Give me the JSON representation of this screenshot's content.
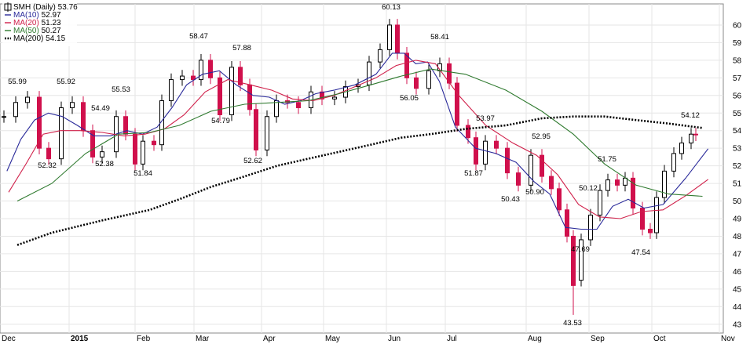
{
  "chart_data": {
    "type": "candlestick",
    "title": "SMH (Daily) 53.76",
    "symbol": "SMH",
    "period": "Daily",
    "last_price": "53.76",
    "yaxis": {
      "side": "right",
      "ylim": [
        42.5,
        61.2
      ],
      "ticks": [
        43,
        44,
        45,
        46,
        47,
        48,
        49,
        50,
        51,
        52,
        53,
        54,
        55,
        56,
        57,
        58,
        59,
        60
      ]
    },
    "xaxis": {
      "labels": [
        "Dec",
        "2015",
        "Feb",
        "Mar",
        "Apr",
        "May",
        "Jun",
        "Jul",
        "Aug",
        "Sep",
        "Oct",
        "Nov"
      ],
      "bold_label": "2015"
    },
    "grid": true,
    "legend_position": "top-left",
    "legend": [
      {
        "name": "SMH (Daily) 53.76",
        "color": "#000000",
        "style": "icon"
      },
      {
        "name": "MA(10)",
        "value": "52.97",
        "color": "#2a2a9a",
        "style": "solid"
      },
      {
        "name": "MA(20)",
        "value": "51.23",
        "color": "#d0204a",
        "style": "solid"
      },
      {
        "name": "MA(50)",
        "value": "50.27",
        "color": "#2f7a2f",
        "style": "solid"
      },
      {
        "name": "MA(200)",
        "value": "54.15",
        "color": "#000000",
        "style": "dotted"
      }
    ],
    "annotations": [
      "55.99",
      "55.92",
      "54.49",
      "55.53",
      "52.32",
      "52.38",
      "51.84",
      "58.47",
      "57.88",
      "54.79",
      "52.62",
      "60.13",
      "58.41",
      "56.05",
      "53.97",
      "51.87",
      "52.95",
      "50.43",
      "50.90",
      "50.12",
      "51.75",
      "47.69",
      "43.53",
      "47.54",
      "54.12"
    ],
    "series": [
      {
        "name": "MA(10)",
        "color": "#2a2a9a",
        "points": [
          [
            "Dec",
            51.7
          ],
          [
            "Dec",
            53.5
          ],
          [
            "Dec",
            54.6
          ],
          [
            "Dec",
            55.0
          ],
          [
            "Dec",
            54.8
          ],
          [
            "2015",
            54.3
          ],
          [
            "2015",
            53.7
          ],
          [
            "2015",
            53.7
          ],
          [
            "2015",
            54.0
          ],
          [
            "Feb",
            53.8
          ],
          [
            "Feb",
            54.2
          ],
          [
            "Feb",
            55.3
          ],
          [
            "Feb",
            56.6
          ],
          [
            "Mar",
            57.2
          ],
          [
            "Mar",
            57.4
          ],
          [
            "Mar",
            56.6
          ],
          [
            "Mar",
            56.0
          ],
          [
            "Apr",
            55.9
          ],
          [
            "Apr",
            55.5
          ],
          [
            "Apr",
            55.7
          ],
          [
            "Apr",
            56.1
          ],
          [
            "May",
            56.3
          ],
          [
            "May",
            56.6
          ],
          [
            "May",
            57.2
          ],
          [
            "Jun",
            58.4
          ],
          [
            "Jun",
            58.4
          ],
          [
            "Jun",
            57.8
          ],
          [
            "Jun",
            57.9
          ],
          [
            "Jun",
            56.8
          ],
          [
            "Jul",
            54.2
          ],
          [
            "Jul",
            53.0
          ],
          [
            "Jul",
            52.7
          ],
          [
            "Jul",
            52.2
          ],
          [
            "Aug",
            51.1
          ],
          [
            "Aug",
            50.4
          ],
          [
            "Aug",
            48.5
          ],
          [
            "Aug",
            48.4
          ],
          [
            "Sep",
            48.4
          ],
          [
            "Sep",
            49.7
          ],
          [
            "Sep",
            50.1
          ],
          [
            "Sep",
            49.6
          ],
          [
            "Oct",
            49.8
          ],
          [
            "Oct",
            51.3
          ],
          [
            "Oct",
            52.97
          ]
        ]
      },
      {
        "name": "MA(20)",
        "color": "#d0204a",
        "points": [
          [
            "Dec",
            50.5
          ],
          [
            "Dec",
            52.1
          ],
          [
            "Dec",
            53.8
          ],
          [
            "Dec",
            54.0
          ],
          [
            "2015",
            54.0
          ],
          [
            "2015",
            53.9
          ],
          [
            "2015",
            53.7
          ],
          [
            "Feb",
            53.8
          ],
          [
            "Feb",
            54.1
          ],
          [
            "Feb",
            54.9
          ],
          [
            "Mar",
            56.2
          ],
          [
            "Mar",
            56.9
          ],
          [
            "Mar",
            56.6
          ],
          [
            "Apr",
            56.3
          ],
          [
            "Apr",
            55.8
          ],
          [
            "Apr",
            55.7
          ],
          [
            "May",
            56.0
          ],
          [
            "May",
            56.5
          ],
          [
            "May",
            57.0
          ],
          [
            "Jun",
            57.7
          ],
          [
            "Jun",
            58.0
          ],
          [
            "Jun",
            57.8
          ],
          [
            "Jul",
            56.0
          ],
          [
            "Jul",
            54.3
          ],
          [
            "Jul",
            53.3
          ],
          [
            "Aug",
            52.6
          ],
          [
            "Aug",
            51.5
          ],
          [
            "Aug",
            49.8
          ],
          [
            "Sep",
            49.1
          ],
          [
            "Sep",
            49.0
          ],
          [
            "Sep",
            49.4
          ],
          [
            "Oct",
            49.5
          ],
          [
            "Oct",
            50.3
          ],
          [
            "Oct",
            51.23
          ]
        ]
      },
      {
        "name": "MA(50)",
        "color": "#2f7a2f",
        "points": [
          [
            "Dec",
            50.0
          ],
          [
            "Dec",
            51.0
          ],
          [
            "2015",
            52.7
          ],
          [
            "2015",
            53.8
          ],
          [
            "Feb",
            53.9
          ],
          [
            "Feb",
            54.3
          ],
          [
            "Mar",
            55.1
          ],
          [
            "Mar",
            55.5
          ],
          [
            "Apr",
            55.6
          ],
          [
            "Apr",
            55.7
          ],
          [
            "May",
            56.1
          ],
          [
            "May",
            56.6
          ],
          [
            "Jun",
            57.1
          ],
          [
            "Jun",
            57.5
          ],
          [
            "Jul",
            57.2
          ],
          [
            "Jul",
            56.3
          ],
          [
            "Aug",
            55.1
          ],
          [
            "Aug",
            53.8
          ],
          [
            "Sep",
            52.1
          ],
          [
            "Sep",
            50.9
          ],
          [
            "Oct",
            50.4
          ],
          [
            "Oct",
            50.27
          ]
        ]
      },
      {
        "name": "MA(200)",
        "color": "#000000",
        "style": "dotted",
        "points": [
          [
            "Dec",
            47.5
          ],
          [
            "Dec",
            48.2
          ],
          [
            "2015",
            48.9
          ],
          [
            "Feb",
            49.5
          ],
          [
            "Feb",
            50.1
          ],
          [
            "Mar",
            50.8
          ],
          [
            "Mar",
            51.4
          ],
          [
            "Apr",
            52.0
          ],
          [
            "Apr",
            52.4
          ],
          [
            "May",
            52.8
          ],
          [
            "May",
            53.2
          ],
          [
            "Jun",
            53.6
          ],
          [
            "Jun",
            53.8
          ],
          [
            "Jul",
            54.1
          ],
          [
            "Jul",
            54.3
          ],
          [
            "Aug",
            54.7
          ],
          [
            "Aug",
            54.8
          ],
          [
            "Sep",
            54.8
          ],
          [
            "Sep",
            54.6
          ],
          [
            "Oct",
            54.4
          ],
          [
            "Oct",
            54.15
          ]
        ]
      }
    ]
  }
}
